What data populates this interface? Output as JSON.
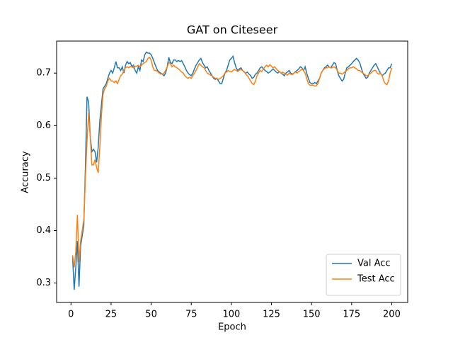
{
  "chart_data": {
    "type": "line",
    "title": "GAT on Citeseer",
    "x_label": "Epoch",
    "y_label": "Accuracy",
    "x": [
      1,
      2,
      3,
      4,
      5,
      6,
      7,
      8,
      9,
      10,
      11,
      12,
      13,
      14,
      15,
      16,
      17,
      18,
      19,
      20,
      21,
      22,
      23,
      24,
      25,
      26,
      27,
      28,
      29,
      30,
      31,
      32,
      33,
      34,
      35,
      36,
      37,
      38,
      39,
      40,
      41,
      42,
      43,
      44,
      45,
      46,
      47,
      48,
      49,
      50,
      51,
      52,
      53,
      54,
      55,
      56,
      57,
      58,
      59,
      60,
      61,
      62,
      63,
      64,
      65,
      66,
      67,
      68,
      69,
      70,
      71,
      72,
      73,
      74,
      75,
      76,
      77,
      78,
      79,
      80,
      81,
      82,
      83,
      84,
      85,
      86,
      87,
      88,
      89,
      90,
      91,
      92,
      93,
      94,
      95,
      96,
      97,
      98,
      99,
      100,
      101,
      102,
      103,
      104,
      105,
      106,
      107,
      108,
      109,
      110,
      111,
      112,
      113,
      114,
      115,
      116,
      117,
      118,
      119,
      120,
      121,
      122,
      123,
      124,
      125,
      126,
      127,
      128,
      129,
      130,
      131,
      132,
      133,
      134,
      135,
      136,
      137,
      138,
      139,
      140,
      141,
      142,
      143,
      144,
      145,
      146,
      147,
      148,
      149,
      150,
      151,
      152,
      153,
      154,
      155,
      156,
      157,
      158,
      159,
      160,
      161,
      162,
      163,
      164,
      165,
      166,
      167,
      168,
      169,
      170,
      171,
      172,
      173,
      174,
      175,
      176,
      177,
      178,
      179,
      180,
      181,
      182,
      183,
      184,
      185,
      186,
      187,
      188,
      189,
      190,
      191,
      192,
      193,
      194,
      195,
      196,
      197,
      198,
      199,
      200
    ],
    "series": [
      {
        "name": "Val Acc",
        "color": "#1f77b4",
        "values": [
          0.35,
          0.287,
          0.33,
          0.38,
          0.293,
          0.37,
          0.39,
          0.41,
          0.52,
          0.655,
          0.645,
          0.58,
          0.55,
          0.555,
          0.55,
          0.53,
          0.56,
          0.61,
          0.64,
          0.67,
          0.675,
          0.68,
          0.69,
          0.7,
          0.705,
          0.7,
          0.71,
          0.722,
          0.71,
          0.71,
          0.705,
          0.712,
          0.7,
          0.715,
          0.722,
          0.718,
          0.72,
          0.712,
          0.715,
          0.705,
          0.7,
          0.712,
          0.705,
          0.725,
          0.722,
          0.735,
          0.74,
          0.738,
          0.738,
          0.735,
          0.728,
          0.72,
          0.712,
          0.705,
          0.702,
          0.7,
          0.698,
          0.695,
          0.7,
          0.712,
          0.73,
          0.72,
          0.718,
          0.725,
          0.725,
          0.722,
          0.724,
          0.722,
          0.724,
          0.718,
          0.712,
          0.705,
          0.7,
          0.697,
          0.695,
          0.7,
          0.708,
          0.715,
          0.72,
          0.725,
          0.728,
          0.72,
          0.715,
          0.71,
          0.712,
          0.705,
          0.7,
          0.695,
          0.69,
          0.688,
          0.69,
          0.685,
          0.68,
          0.68,
          0.69,
          0.7,
          0.705,
          0.715,
          0.725,
          0.728,
          0.732,
          0.72,
          0.71,
          0.705,
          0.708,
          0.71,
          0.705,
          0.702,
          0.7,
          0.702,
          0.698,
          0.695,
          0.69,
          0.692,
          0.698,
          0.7,
          0.705,
          0.71,
          0.712,
          0.708,
          0.705,
          0.703,
          0.7,
          0.702,
          0.705,
          0.708,
          0.705,
          0.702,
          0.7,
          0.703,
          0.7,
          0.698,
          0.695,
          0.7,
          0.702,
          0.705,
          0.7,
          0.698,
          0.7,
          0.703,
          0.705,
          0.708,
          0.712,
          0.71,
          0.705,
          0.712,
          0.7,
          0.69,
          0.682,
          0.68,
          0.68,
          0.682,
          0.68,
          0.685,
          0.69,
          0.7,
          0.705,
          0.71,
          0.712,
          0.715,
          0.712,
          0.71,
          0.715,
          0.72,
          0.718,
          0.705,
          0.695,
          0.69,
          0.685,
          0.688,
          0.7,
          0.71,
          0.712,
          0.715,
          0.718,
          0.722,
          0.725,
          0.728,
          0.725,
          0.72,
          0.71,
          0.7,
          0.695,
          0.69,
          0.692,
          0.7,
          0.705,
          0.71,
          0.715,
          0.718,
          0.712,
          0.705,
          0.7,
          0.695,
          0.698,
          0.7,
          0.705,
          0.71,
          0.71,
          0.718
        ]
      },
      {
        "name": "Test Acc",
        "color": "#ff7f0e",
        "values": [
          0.353,
          0.33,
          0.36,
          0.43,
          0.34,
          0.38,
          0.4,
          0.42,
          0.5,
          0.57,
          0.625,
          0.58,
          0.525,
          0.525,
          0.535,
          0.52,
          0.51,
          0.56,
          0.62,
          0.66,
          0.67,
          0.675,
          0.685,
          0.69,
          0.685,
          0.685,
          0.682,
          0.685,
          0.68,
          0.688,
          0.695,
          0.698,
          0.705,
          0.71,
          0.712,
          0.71,
          0.713,
          0.712,
          0.71,
          0.713,
          0.713,
          0.715,
          0.712,
          0.715,
          0.718,
          0.72,
          0.722,
          0.728,
          0.73,
          0.725,
          0.712,
          0.705,
          0.705,
          0.703,
          0.7,
          0.698,
          0.698,
          0.7,
          0.705,
          0.712,
          0.72,
          0.718,
          0.712,
          0.715,
          0.712,
          0.71,
          0.708,
          0.705,
          0.702,
          0.7,
          0.695,
          0.692,
          0.69,
          0.692,
          0.69,
          0.695,
          0.7,
          0.705,
          0.712,
          0.718,
          0.715,
          0.712,
          0.71,
          0.705,
          0.7,
          0.698,
          0.696,
          0.695,
          0.692,
          0.69,
          0.69,
          0.688,
          0.69,
          0.692,
          0.695,
          0.7,
          0.702,
          0.705,
          0.703,
          0.702,
          0.705,
          0.707,
          0.705,
          0.703,
          0.706,
          0.707,
          0.705,
          0.703,
          0.698,
          0.695,
          0.69,
          0.685,
          0.68,
          0.678,
          0.685,
          0.695,
          0.7,
          0.705,
          0.703,
          0.708,
          0.712,
          0.715,
          0.712,
          0.716,
          0.713,
          0.71,
          0.712,
          0.708,
          0.705,
          0.703,
          0.7,
          0.702,
          0.7,
          0.698,
          0.696,
          0.7,
          0.698,
          0.697,
          0.7,
          0.702,
          0.7,
          0.703,
          0.705,
          0.708,
          0.705,
          0.7,
          0.69,
          0.68,
          0.677,
          0.677,
          0.677,
          0.675,
          0.676,
          0.68,
          0.69,
          0.7,
          0.705,
          0.708,
          0.71,
          0.71,
          0.712,
          0.71,
          0.71,
          0.712,
          0.71,
          0.705,
          0.7,
          0.7,
          0.698,
          0.7,
          0.703,
          0.705,
          0.708,
          0.71,
          0.71,
          0.712,
          0.71,
          0.708,
          0.705,
          0.705,
          0.702,
          0.7,
          0.698,
          0.695,
          0.695,
          0.698,
          0.7,
          0.703,
          0.705,
          0.705,
          0.7,
          0.698,
          0.7,
          0.695,
          0.685,
          0.68,
          0.678,
          0.685,
          0.7,
          0.71
        ]
      }
    ],
    "xlim": [
      -8.95,
      209.95
    ],
    "xticks": [
      0,
      25,
      50,
      75,
      100,
      125,
      150,
      175,
      200
    ],
    "ylim": [
      0.263,
      0.761
    ],
    "yticks": [
      0.3,
      0.4,
      0.5,
      0.6,
      0.7
    ],
    "legend": "lower right"
  }
}
